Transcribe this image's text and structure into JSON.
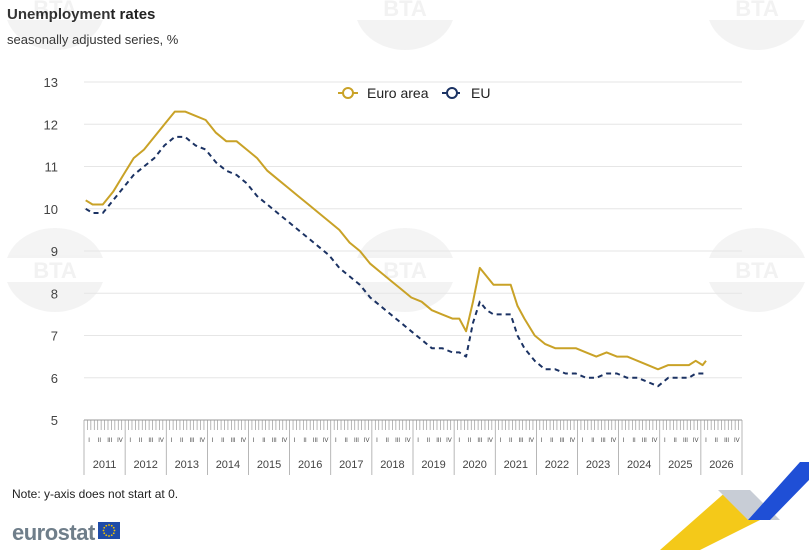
{
  "title": "Unemployment rates",
  "subtitle": "seasonally adjusted series, %",
  "note": "Note: y-axis does not start at 0.",
  "logo": "eurostat",
  "watermark": "BTA",
  "colors": {
    "euro_area": "#c9a227",
    "eu": "#1b3263",
    "grid": "#e6e6e6",
    "axis_text": "#444444",
    "brand_yellow": "#f3c300",
    "brand_blue": "#1f4fd6",
    "eu_flag": "#1e4ba8"
  },
  "chart_data": {
    "type": "line",
    "title": "Unemployment rates",
    "subtitle": "seasonally adjusted series, %",
    "ylim": [
      5,
      13
    ],
    "yticks": [
      "5",
      "6",
      "7",
      "8",
      "9",
      "10",
      "11",
      "12",
      "13"
    ],
    "quarters": [
      "I",
      "II",
      "III",
      "IV"
    ],
    "years": [
      "2011",
      "2012",
      "2013",
      "2014",
      "2015",
      "2016",
      "2017",
      "2018",
      "2019",
      "2020",
      "2021",
      "2022",
      "2023",
      "2024",
      "2025",
      "2026"
    ],
    "grid": true,
    "legend_position": "top-center",
    "series": [
      {
        "name": "Euro area",
        "style": "solid-circle-marker",
        "points": [
          [
            "2011-01",
            10.2
          ],
          [
            "2011-03",
            10.1
          ],
          [
            "2011-06",
            10.1
          ],
          [
            "2011-09",
            10.4
          ],
          [
            "2011-12",
            10.8
          ],
          [
            "2012-03",
            11.2
          ],
          [
            "2012-06",
            11.4
          ],
          [
            "2012-09",
            11.7
          ],
          [
            "2012-12",
            12.0
          ],
          [
            "2013-03",
            12.3
          ],
          [
            "2013-06",
            12.3
          ],
          [
            "2013-09",
            12.2
          ],
          [
            "2013-12",
            12.1
          ],
          [
            "2014-03",
            11.8
          ],
          [
            "2014-06",
            11.6
          ],
          [
            "2014-09",
            11.6
          ],
          [
            "2014-12",
            11.4
          ],
          [
            "2015-03",
            11.2
          ],
          [
            "2015-06",
            10.9
          ],
          [
            "2015-09",
            10.7
          ],
          [
            "2015-12",
            10.5
          ],
          [
            "2016-03",
            10.3
          ],
          [
            "2016-06",
            10.1
          ],
          [
            "2016-09",
            9.9
          ],
          [
            "2016-12",
            9.7
          ],
          [
            "2017-03",
            9.5
          ],
          [
            "2017-06",
            9.2
          ],
          [
            "2017-09",
            9.0
          ],
          [
            "2017-12",
            8.7
          ],
          [
            "2018-03",
            8.5
          ],
          [
            "2018-06",
            8.3
          ],
          [
            "2018-09",
            8.1
          ],
          [
            "2018-12",
            7.9
          ],
          [
            "2019-03",
            7.8
          ],
          [
            "2019-06",
            7.6
          ],
          [
            "2019-09",
            7.5
          ],
          [
            "2019-12",
            7.4
          ],
          [
            "2020-02",
            7.4
          ],
          [
            "2020-04",
            7.1
          ],
          [
            "2020-06",
            7.8
          ],
          [
            "2020-08",
            8.6
          ],
          [
            "2020-10",
            8.4
          ],
          [
            "2020-12",
            8.2
          ],
          [
            "2021-03",
            8.2
          ],
          [
            "2021-05",
            8.2
          ],
          [
            "2021-07",
            7.7
          ],
          [
            "2021-09",
            7.4
          ],
          [
            "2021-12",
            7.0
          ],
          [
            "2022-03",
            6.8
          ],
          [
            "2022-06",
            6.7
          ],
          [
            "2022-09",
            6.7
          ],
          [
            "2022-12",
            6.7
          ],
          [
            "2023-03",
            6.6
          ],
          [
            "2023-06",
            6.5
          ],
          [
            "2023-09",
            6.6
          ],
          [
            "2023-12",
            6.5
          ],
          [
            "2024-03",
            6.5
          ],
          [
            "2024-06",
            6.4
          ],
          [
            "2024-09",
            6.3
          ],
          [
            "2024-12",
            6.2
          ],
          [
            "2025-03",
            6.3
          ],
          [
            "2025-06",
            6.3
          ],
          [
            "2025-09",
            6.3
          ],
          [
            "2025-11",
            6.4
          ],
          [
            "2026-01",
            6.3
          ],
          [
            "2026-02",
            6.4
          ]
        ]
      },
      {
        "name": "EU",
        "style": "dashed-circle-marker",
        "points": [
          [
            "2011-01",
            10.0
          ],
          [
            "2011-03",
            9.9
          ],
          [
            "2011-06",
            9.9
          ],
          [
            "2011-09",
            10.2
          ],
          [
            "2011-12",
            10.5
          ],
          [
            "2012-03",
            10.8
          ],
          [
            "2012-06",
            11.0
          ],
          [
            "2012-09",
            11.2
          ],
          [
            "2012-12",
            11.5
          ],
          [
            "2013-03",
            11.7
          ],
          [
            "2013-06",
            11.7
          ],
          [
            "2013-09",
            11.5
          ],
          [
            "2013-12",
            11.4
          ],
          [
            "2014-03",
            11.1
          ],
          [
            "2014-06",
            10.9
          ],
          [
            "2014-09",
            10.8
          ],
          [
            "2014-12",
            10.6
          ],
          [
            "2015-03",
            10.3
          ],
          [
            "2015-06",
            10.1
          ],
          [
            "2015-09",
            9.9
          ],
          [
            "2015-12",
            9.7
          ],
          [
            "2016-03",
            9.5
          ],
          [
            "2016-06",
            9.3
          ],
          [
            "2016-09",
            9.1
          ],
          [
            "2016-12",
            8.9
          ],
          [
            "2017-03",
            8.6
          ],
          [
            "2017-06",
            8.4
          ],
          [
            "2017-09",
            8.2
          ],
          [
            "2017-12",
            7.9
          ],
          [
            "2018-03",
            7.7
          ],
          [
            "2018-06",
            7.5
          ],
          [
            "2018-09",
            7.3
          ],
          [
            "2018-12",
            7.1
          ],
          [
            "2019-03",
            6.9
          ],
          [
            "2019-06",
            6.7
          ],
          [
            "2019-09",
            6.7
          ],
          [
            "2019-12",
            6.6
          ],
          [
            "2020-02",
            6.6
          ],
          [
            "2020-04",
            6.5
          ],
          [
            "2020-06",
            7.3
          ],
          [
            "2020-08",
            7.8
          ],
          [
            "2020-10",
            7.6
          ],
          [
            "2020-12",
            7.5
          ],
          [
            "2021-03",
            7.5
          ],
          [
            "2021-05",
            7.5
          ],
          [
            "2021-07",
            7.0
          ],
          [
            "2021-09",
            6.7
          ],
          [
            "2021-12",
            6.4
          ],
          [
            "2022-03",
            6.2
          ],
          [
            "2022-06",
            6.2
          ],
          [
            "2022-09",
            6.1
          ],
          [
            "2022-12",
            6.1
          ],
          [
            "2023-03",
            6.0
          ],
          [
            "2023-06",
            6.0
          ],
          [
            "2023-09",
            6.1
          ],
          [
            "2023-12",
            6.1
          ],
          [
            "2024-03",
            6.0
          ],
          [
            "2024-06",
            6.0
          ],
          [
            "2024-09",
            5.9
          ],
          [
            "2024-12",
            5.8
          ],
          [
            "2025-03",
            6.0
          ],
          [
            "2025-06",
            6.0
          ],
          [
            "2025-09",
            6.0
          ],
          [
            "2025-11",
            6.1
          ],
          [
            "2026-01",
            6.1
          ],
          [
            "2026-02",
            6.1
          ]
        ]
      }
    ]
  }
}
